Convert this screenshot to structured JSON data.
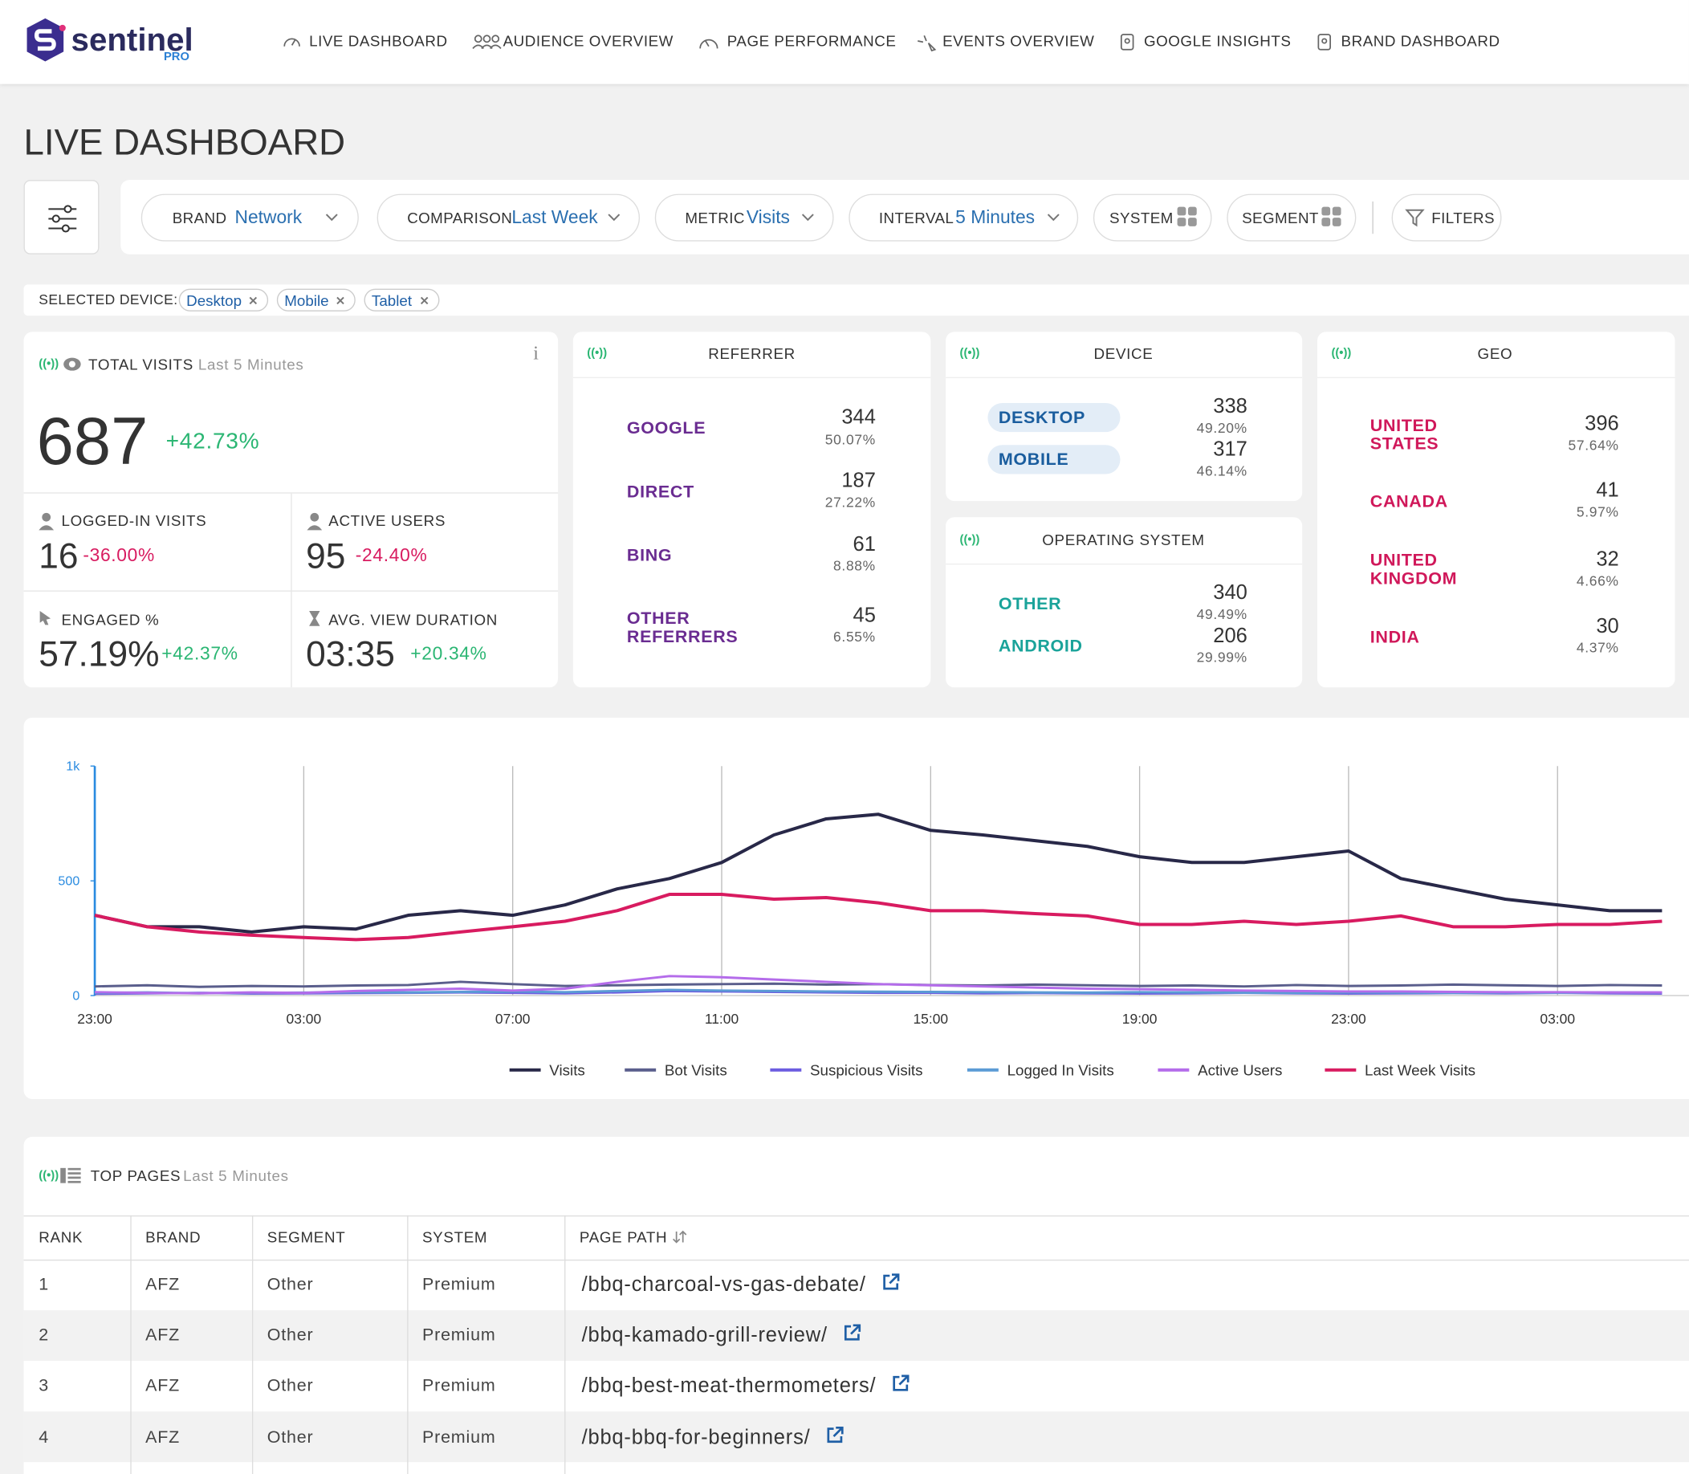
{
  "header": {
    "logo": "sentinel",
    "logo_sub": "PRO",
    "nav": [
      "LIVE DASHBOARD",
      "AUDIENCE OVERVIEW",
      "PAGE PERFORMANCE",
      "EVENTS OVERVIEW",
      "GOOGLE INSIGHTS",
      "BRAND DASHBOARD"
    ]
  },
  "page_title": "LIVE DASHBOARD",
  "filters": [
    {
      "label": "BRAND",
      "value": "Network"
    },
    {
      "label": "COMPARISON",
      "value": "Last Week"
    },
    {
      "label": "METRIC",
      "value": "Visits"
    },
    {
      "label": "INTERVAL",
      "value": "5 Minutes"
    },
    {
      "label": "SYSTEM"
    },
    {
      "label": "SEGMENT"
    },
    {
      "label": "FILTERS"
    }
  ],
  "selected_device": {
    "label": "SELECTED DEVICE:",
    "chips": [
      "Desktop",
      "Mobile",
      "Tablet"
    ]
  },
  "total_visits": {
    "title": "TOTAL VISITS",
    "period": "Last 5 Minutes",
    "value": 687,
    "change": "+42.73%",
    "metrics": [
      {
        "label": "LOGGED-IN VISITS",
        "value": "16",
        "change": "-36.00%"
      },
      {
        "label": "ACTIVE USERS",
        "value": "95",
        "change": "-24.40%"
      },
      {
        "label": "ENGAGED %",
        "value": "57.19%",
        "change": "+42.37%"
      },
      {
        "label": "AVG. VIEW DURATION",
        "value": "03:35",
        "change": "+20.34%"
      }
    ]
  },
  "referrer": {
    "title": "REFERRER",
    "rows": [
      {
        "name": "GOOGLE",
        "count": 344,
        "share": "50.07%"
      },
      {
        "name": "DIRECT",
        "count": 187,
        "share": "27.22%"
      },
      {
        "name": "BING",
        "count": 61,
        "share": "8.88%"
      },
      {
        "name": "OTHER REFERRERS",
        "count": 45,
        "share": "6.55%"
      }
    ]
  },
  "device": {
    "title": "DEVICE",
    "rows": [
      {
        "name": "DESKTOP",
        "count": 338,
        "share": "49.20%"
      },
      {
        "name": "MOBILE",
        "count": 317,
        "share": "46.14%"
      }
    ]
  },
  "os": {
    "title": "OPERATING SYSTEM",
    "rows": [
      {
        "name": "OTHER",
        "count": 340,
        "share": "49.49%"
      },
      {
        "name": "ANDROID",
        "count": 206,
        "share": "29.99%"
      }
    ]
  },
  "geo": {
    "title": "GEO",
    "rows": [
      {
        "name": "UNITED STATES",
        "count": 396,
        "share": "57.64%"
      },
      {
        "name": "CANADA",
        "count": 41,
        "share": "5.97%"
      },
      {
        "name": "UNITED KINGDOM",
        "count": 32,
        "share": "4.66%"
      },
      {
        "name": "INDIA",
        "count": 30,
        "share": "4.37%"
      }
    ]
  },
  "chart_data": {
    "type": "line",
    "categories": [
      "23:00",
      null,
      null,
      null,
      "03:00",
      null,
      null,
      null,
      "07:00",
      null,
      null,
      null,
      "11:00",
      null,
      null,
      null,
      "15:00",
      null,
      null,
      null,
      "19:00",
      null,
      null,
      null,
      "23:00",
      null,
      null,
      null,
      "03:00",
      null,
      null
    ],
    "ylim": [
      0,
      1000
    ],
    "yticks": [
      0,
      500,
      {
        "value": 1000,
        "label": "1k"
      }
    ],
    "grid": true,
    "series": [
      {
        "name": "Visits",
        "color": "#282848",
        "values": [
          350,
          300,
          300,
          277,
          300,
          290,
          350,
          370,
          350,
          395,
          465,
          510,
          580,
          700,
          770,
          790,
          720,
          700,
          675,
          650,
          605,
          580,
          580,
          605,
          630,
          510,
          465,
          420,
          395,
          370,
          370
        ]
      },
      {
        "name": "Bot Visits",
        "color": "#5a5e8c",
        "values": [
          40,
          45,
          38,
          42,
          40,
          44,
          46,
          60,
          50,
          42,
          45,
          48,
          50,
          52,
          48,
          50,
          46,
          44,
          48,
          45,
          42,
          44,
          40,
          46,
          42,
          44,
          48,
          45,
          42,
          46,
          44
        ]
      },
      {
        "name": "Suspicious Visits",
        "color": "#6c5ce0",
        "values": [
          8,
          10,
          12,
          9,
          10,
          11,
          12,
          14,
          12,
          10,
          14,
          20,
          18,
          16,
          14,
          12,
          12,
          10,
          11,
          10,
          9,
          10,
          12,
          10,
          9,
          10,
          11,
          10,
          12,
          10,
          9
        ]
      },
      {
        "name": "Logged In Visits",
        "color": "#5b9bd5",
        "values": [
          12,
          14,
          10,
          12,
          13,
          15,
          14,
          16,
          18,
          15,
          20,
          25,
          22,
          20,
          18,
          17,
          16,
          15,
          14,
          13,
          15,
          14,
          13,
          12,
          14,
          13,
          12,
          13,
          12,
          14,
          13
        ]
      },
      {
        "name": "Active Users",
        "color": "#b46cea",
        "values": [
          15,
          12,
          10,
          14,
          12,
          20,
          25,
          30,
          22,
          30,
          60,
          85,
          80,
          70,
          60,
          50,
          45,
          40,
          35,
          30,
          28,
          25,
          22,
          20,
          18,
          18,
          16,
          15,
          15,
          14,
          14
        ]
      },
      {
        "name": "Last Week Visits",
        "color": "#d81b60",
        "values": [
          350,
          300,
          277,
          263,
          253,
          244,
          253,
          277,
          300,
          324,
          370,
          441,
          441,
          420,
          427,
          404,
          370,
          370,
          357,
          347,
          310,
          310,
          324,
          310,
          324,
          347,
          300,
          300,
          310,
          310,
          324
        ]
      }
    ]
  },
  "top_pages": {
    "title": "TOP PAGES",
    "period": "Last 5 Minutes",
    "columns": [
      "RANK",
      "BRAND",
      "SEGMENT",
      "SYSTEM",
      "PAGE PATH"
    ],
    "rows": [
      [
        1,
        "AFZ",
        "Other",
        "Premium",
        "/bbq-charcoal-vs-gas-debate/"
      ],
      [
        2,
        "AFZ",
        "Other",
        "Premium",
        "/bbq-kamado-grill-review/"
      ],
      [
        3,
        "AFZ",
        "Other",
        "Premium",
        "/bbq-best-meat-thermometers/"
      ],
      [
        4,
        "AFZ",
        "Other",
        "Premium",
        "/bbq-bbq-for-beginners/"
      ]
    ]
  }
}
